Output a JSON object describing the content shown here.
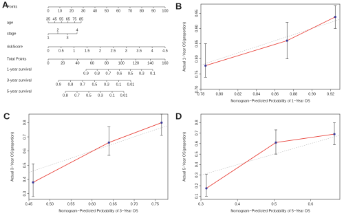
{
  "chart_data": [
    {
      "type": "nomogram",
      "panel": "A",
      "rows": [
        {
          "label": "Points",
          "ticks": [
            0,
            10,
            20,
            30,
            40,
            50,
            60,
            70,
            80,
            90,
            100
          ]
        },
        {
          "label": "age",
          "ticks": [
            35,
            45,
            55,
            65,
            75,
            85
          ]
        },
        {
          "label": "stage",
          "ticks": [
            1,
            2,
            3,
            4
          ]
        },
        {
          "label": "riskScore",
          "ticks": [
            0,
            0.5,
            1,
            1.5,
            2,
            2.5,
            3,
            3.5,
            4,
            4.5
          ]
        },
        {
          "label": "Total Points",
          "ticks": [
            0,
            20,
            40,
            60,
            80,
            100,
            120,
            140,
            160
          ]
        },
        {
          "label": "1-year survival",
          "ticks": [
            0.9,
            0.8,
            0.7,
            0.6,
            0.5,
            0.3,
            0.1
          ]
        },
        {
          "label": "3-year survival",
          "ticks": [
            0.9,
            0.8,
            0.7,
            0.5,
            0.3,
            0.1,
            0.01
          ]
        },
        {
          "label": "5-year survival",
          "ticks": [
            0.8,
            0.7,
            0.5,
            0.3,
            0.1,
            0.01
          ]
        }
      ]
    },
    {
      "type": "calibration",
      "panel": "B",
      "x_label": "Nomogram−Predicted Probability of 1−Year OS",
      "y_label": "Actual 1−Year OS(proportion)",
      "x": [
        0.785,
        0.873,
        0.925
      ],
      "values": [
        0.778,
        0.86,
        0.938
      ],
      "lower": [
        0.74,
        0.8,
        0.9
      ],
      "upper": [
        0.85,
        0.92,
        0.975
      ],
      "color": "#e8433b",
      "point_color": "#3a3a9a",
      "xlim": [
        0.78,
        0.93
      ],
      "ylim": [
        0.7,
        0.98
      ],
      "xticks": [
        0.78,
        {
          "value": 0.8,
          "label": "0.80"
        },
        0.82,
        0.84,
        0.86,
        0.88,
        {
          "value": 0.9,
          "label": "0.90"
        },
        0.92
      ],
      "yticks": [
        {
          "value": 0.7,
          "label": "0.70"
        },
        0.75,
        {
          "value": 0.8,
          "label": "0.80"
        },
        0.85,
        {
          "value": 0.9,
          "label": "0.90"
        },
        0.95
      ]
    },
    {
      "type": "calibration",
      "panel": "C",
      "x_label": "Nomogram−Predicted Probability of 3−Year OS",
      "y_label": "Actual 3−Year OS(proportion)",
      "x": [
        0.46,
        0.64,
        0.765
      ],
      "values": [
        0.38,
        0.66,
        0.8
      ],
      "lower": [
        0.28,
        0.57,
        0.71
      ],
      "upper": [
        0.51,
        0.77,
        0.86
      ],
      "color": "#e8433b",
      "point_color": "#3a3a9a",
      "xlim": [
        0.45,
        0.78
      ],
      "ylim": [
        0.26,
        0.86
      ],
      "xticks": [
        0.45,
        {
          "value": 0.5,
          "label": "0.50"
        },
        0.55,
        {
          "value": 0.6,
          "label": "0.60"
        },
        0.65,
        {
          "value": 0.7,
          "label": "0.70"
        },
        0.75
      ],
      "yticks": [
        0.3,
        0.4,
        0.5,
        0.6,
        0.7,
        0.8
      ]
    },
    {
      "type": "calibration",
      "panel": "D",
      "x_label": "Nomogram−Predicted Probability of 5−Year OS",
      "y_label": "Actual 5−Year OS(proportion)",
      "x": [
        0.315,
        0.505,
        0.665
      ],
      "values": [
        0.175,
        0.61,
        0.69
      ],
      "lower": [
        0.1,
        0.5,
        0.59
      ],
      "upper": [
        0.31,
        0.73,
        0.8
      ],
      "color": "#e8433b",
      "point_color": "#3a3a9a",
      "xlim": [
        0.3,
        0.68
      ],
      "ylim": [
        0.07,
        0.88
      ],
      "xticks": [
        0.3,
        0.4,
        0.5,
        0.6
      ],
      "yticks": [
        0.1,
        0.2,
        0.3,
        0.4,
        0.5,
        0.6,
        0.7,
        0.8
      ]
    }
  ]
}
